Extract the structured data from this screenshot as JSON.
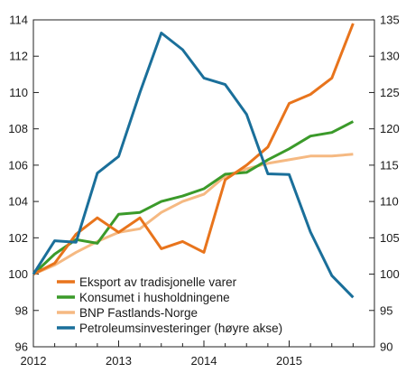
{
  "chart_data": {
    "type": "line",
    "x_tick_labels": [
      "2012",
      "2013",
      "2014",
      "2015"
    ],
    "x_range": [
      2012.0,
      2016.0
    ],
    "left_axis": {
      "ticks": [
        "96",
        "98",
        "100",
        "102",
        "104",
        "106",
        "108",
        "110",
        "112",
        "114"
      ],
      "range": [
        96,
        114
      ]
    },
    "right_axis": {
      "ticks": [
        "90",
        "95",
        "100",
        "105",
        "110",
        "115",
        "120",
        "125",
        "130",
        "135"
      ],
      "range": [
        90,
        135
      ]
    },
    "legend_placement": "bottom-center",
    "series": [
      {
        "name": "Eksport av tradisjonelle varer",
        "axis": "left",
        "color": "#e8741c",
        "x": [
          2012.0,
          2012.25,
          2012.5,
          2012.75,
          2013.0,
          2013.25,
          2013.5,
          2013.75,
          2014.0,
          2014.25,
          2014.5,
          2014.75,
          2015.0,
          2015.25,
          2015.5,
          2015.75
        ],
        "values": [
          100.0,
          100.6,
          102.2,
          103.1,
          102.3,
          103.1,
          101.4,
          101.8,
          101.2,
          105.2,
          106.0,
          107.0,
          109.4,
          109.9,
          110.8,
          113.8
        ]
      },
      {
        "name": "Konsumet i husholdningene",
        "axis": "left",
        "color": "#3b9a2a",
        "x": [
          2012.0,
          2012.25,
          2012.5,
          2012.75,
          2013.0,
          2013.25,
          2013.5,
          2013.75,
          2014.0,
          2014.25,
          2014.5,
          2014.75,
          2015.0,
          2015.25,
          2015.5,
          2015.75
        ],
        "values": [
          100.0,
          101.1,
          101.9,
          101.7,
          103.3,
          103.4,
          104.0,
          104.3,
          104.7,
          105.5,
          105.6,
          106.3,
          106.9,
          107.6,
          107.8,
          108.4
        ]
      },
      {
        "name": "BNP Fastlands-Norge",
        "axis": "left",
        "color": "#f5b982",
        "x": [
          2012.0,
          2012.25,
          2012.5,
          2012.75,
          2013.0,
          2013.25,
          2013.5,
          2013.75,
          2014.0,
          2014.25,
          2014.5,
          2014.75,
          2015.0,
          2015.25,
          2015.5,
          2015.75
        ],
        "values": [
          100.0,
          100.5,
          101.2,
          101.8,
          102.3,
          102.5,
          103.4,
          104.0,
          104.4,
          105.4,
          105.8,
          106.1,
          106.3,
          106.5,
          106.5,
          106.6
        ]
      },
      {
        "name": "Petroleumsinvesteringer (høyre akse)",
        "axis": "right",
        "color": "#1a6f9a",
        "x": [
          2012.0,
          2012.25,
          2012.5,
          2012.75,
          2013.0,
          2013.25,
          2013.5,
          2013.75,
          2014.0,
          2014.25,
          2014.5,
          2014.75,
          2015.0,
          2015.25,
          2015.5,
          2015.75
        ],
        "values": [
          100.0,
          104.6,
          104.4,
          113.9,
          116.2,
          125.0,
          133.2,
          130.9,
          127.0,
          126.1,
          122.0,
          113.8,
          113.7,
          105.8,
          99.8,
          96.8
        ]
      }
    ]
  }
}
